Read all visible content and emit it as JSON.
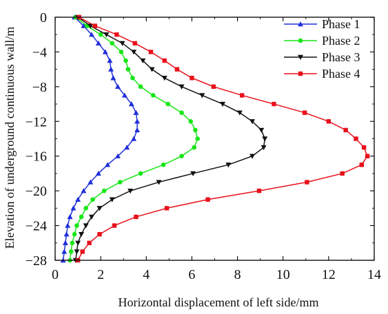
{
  "chart_data": {
    "type": "line",
    "xlabel": "Horizontal displacement of left side/mm",
    "ylabel": "Elevation of underground continuous wall/m",
    "xlim": [
      0,
      14
    ],
    "ylim": [
      -28,
      0
    ],
    "xticks": [
      0,
      2,
      4,
      6,
      8,
      10,
      12,
      14
    ],
    "yticks": [
      0,
      -4,
      -8,
      -12,
      -16,
      -20,
      -24,
      -28
    ],
    "legend_position": "top-right",
    "grid": false,
    "series": [
      {
        "name": "Phase 1",
        "color": "#1f2fd9",
        "marker": "triangle-up",
        "points": [
          [
            0.85,
            0
          ],
          [
            1.25,
            -1
          ],
          [
            1.6,
            -2
          ],
          [
            1.9,
            -3
          ],
          [
            2.2,
            -4
          ],
          [
            2.4,
            -5
          ],
          [
            2.45,
            -6
          ],
          [
            2.55,
            -7
          ],
          [
            2.75,
            -8
          ],
          [
            3.05,
            -9
          ],
          [
            3.35,
            -10
          ],
          [
            3.55,
            -11
          ],
          [
            3.6,
            -12
          ],
          [
            3.6,
            -13
          ],
          [
            3.45,
            -14
          ],
          [
            3.15,
            -15
          ],
          [
            2.75,
            -16
          ],
          [
            2.3,
            -17
          ],
          [
            1.9,
            -18
          ],
          [
            1.55,
            -19
          ],
          [
            1.25,
            -20
          ],
          [
            1.0,
            -21
          ],
          [
            0.8,
            -22
          ],
          [
            0.65,
            -23
          ],
          [
            0.55,
            -24
          ],
          [
            0.5,
            -25
          ],
          [
            0.45,
            -26
          ],
          [
            0.4,
            -27
          ],
          [
            0.35,
            -28
          ]
        ]
      },
      {
        "name": "Phase 2",
        "color": "#16e616",
        "marker": "circle",
        "points": [
          [
            0.9,
            0
          ],
          [
            1.4,
            -1
          ],
          [
            2.0,
            -2
          ],
          [
            2.5,
            -3
          ],
          [
            2.9,
            -4
          ],
          [
            3.1,
            -5
          ],
          [
            3.2,
            -6
          ],
          [
            3.4,
            -7
          ],
          [
            3.75,
            -8
          ],
          [
            4.3,
            -9
          ],
          [
            4.95,
            -10
          ],
          [
            5.55,
            -11
          ],
          [
            5.95,
            -12
          ],
          [
            6.15,
            -13
          ],
          [
            6.25,
            -14
          ],
          [
            6.1,
            -15
          ],
          [
            5.55,
            -16
          ],
          [
            4.75,
            -17
          ],
          [
            3.75,
            -18
          ],
          [
            2.85,
            -19
          ],
          [
            2.15,
            -20
          ],
          [
            1.65,
            -21
          ],
          [
            1.35,
            -22
          ],
          [
            1.15,
            -23
          ],
          [
            0.95,
            -24
          ],
          [
            0.85,
            -25
          ],
          [
            0.75,
            -26
          ],
          [
            0.7,
            -27
          ],
          [
            0.65,
            -28
          ]
        ]
      },
      {
        "name": "Phase 3",
        "color": "#111111",
        "marker": "triangle-down",
        "points": [
          [
            1.0,
            0
          ],
          [
            1.55,
            -1
          ],
          [
            2.25,
            -2
          ],
          [
            2.95,
            -3
          ],
          [
            3.45,
            -4
          ],
          [
            3.85,
            -5
          ],
          [
            4.25,
            -6
          ],
          [
            4.8,
            -7
          ],
          [
            5.55,
            -8
          ],
          [
            6.45,
            -9
          ],
          [
            7.35,
            -10
          ],
          [
            8.1,
            -11
          ],
          [
            8.65,
            -12
          ],
          [
            9.05,
            -13
          ],
          [
            9.2,
            -14
          ],
          [
            9.15,
            -15
          ],
          [
            8.65,
            -16
          ],
          [
            7.6,
            -17
          ],
          [
            6.05,
            -18
          ],
          [
            4.55,
            -19
          ],
          [
            3.3,
            -20
          ],
          [
            2.5,
            -21
          ],
          [
            1.95,
            -22
          ],
          [
            1.6,
            -23
          ],
          [
            1.35,
            -24
          ],
          [
            1.15,
            -25
          ],
          [
            1.0,
            -26
          ],
          [
            0.95,
            -27
          ],
          [
            0.9,
            -28
          ]
        ]
      },
      {
        "name": "Phase 4",
        "color": "#e8101a",
        "marker": "square",
        "points": [
          [
            1.05,
            0
          ],
          [
            1.75,
            -1
          ],
          [
            2.7,
            -2
          ],
          [
            3.5,
            -3
          ],
          [
            4.2,
            -4
          ],
          [
            4.8,
            -5
          ],
          [
            5.35,
            -6
          ],
          [
            6.0,
            -7
          ],
          [
            6.95,
            -8
          ],
          [
            8.2,
            -9
          ],
          [
            9.6,
            -10
          ],
          [
            10.95,
            -11
          ],
          [
            12.0,
            -12
          ],
          [
            12.75,
            -13
          ],
          [
            13.2,
            -14
          ],
          [
            13.55,
            -15
          ],
          [
            13.7,
            -16
          ],
          [
            13.45,
            -17
          ],
          [
            12.6,
            -18
          ],
          [
            11.05,
            -19
          ],
          [
            8.95,
            -20
          ],
          [
            6.7,
            -21
          ],
          [
            4.9,
            -22
          ],
          [
            3.55,
            -23
          ],
          [
            2.6,
            -24
          ],
          [
            1.95,
            -25
          ],
          [
            1.5,
            -26
          ],
          [
            1.2,
            -27
          ],
          [
            1.0,
            -28
          ]
        ]
      }
    ]
  }
}
